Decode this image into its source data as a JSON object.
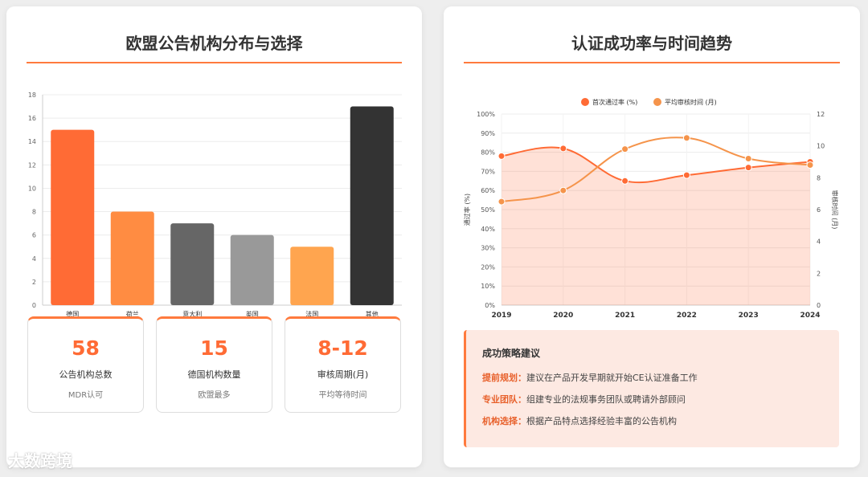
{
  "left_panel": {
    "title": "欧盟公告机构分布与选择"
  },
  "right_panel": {
    "title": "认证成功率与时间趋势"
  },
  "chart_data": [
    {
      "type": "bar",
      "categories": [
        "德国",
        "荷兰",
        "意大利",
        "英国",
        "法国",
        "其他"
      ],
      "values": [
        15,
        8,
        7,
        6,
        5,
        17
      ],
      "colors": [
        "#ff6b35",
        "#ff8c42",
        "#666666",
        "#999999",
        "#ffa54f",
        "#333333"
      ],
      "ylim": [
        0,
        18
      ],
      "yticks": [
        0,
        2,
        4,
        6,
        8,
        10,
        12,
        14,
        16,
        18
      ],
      "grid": true,
      "legend": false
    },
    {
      "type": "line",
      "x": [
        "2019",
        "2020",
        "2021",
        "2022",
        "2023",
        "2024"
      ],
      "series": [
        {
          "name": "首次通过率 (%)",
          "values": [
            78,
            82,
            65,
            68,
            72,
            75
          ],
          "color": "#ff6b35",
          "axis": "left",
          "fill": true
        },
        {
          "name": "平均审核时间 (月)",
          "values": [
            6.5,
            7.2,
            9.8,
            10.5,
            9.2,
            8.8
          ],
          "color": "#f5944b",
          "axis": "right",
          "fill": false
        }
      ],
      "y_left": {
        "label": "通过率 (%)",
        "ylim": [
          0,
          100
        ],
        "ticks": [
          "0%",
          "10%",
          "20%",
          "30%",
          "40%",
          "50%",
          "60%",
          "70%",
          "80%",
          "90%",
          "100%"
        ]
      },
      "y_right": {
        "label": "审核时间 (月)",
        "ylim": [
          0,
          12
        ],
        "ticks": [
          "0",
          "2",
          "4",
          "6",
          "8",
          "10",
          "12"
        ]
      },
      "legend": "top-center",
      "grid": true
    }
  ],
  "stats": [
    {
      "value": "58",
      "label": "公告机构总数",
      "sub": "MDR认可"
    },
    {
      "value": "15",
      "label": "德国机构数量",
      "sub": "欧盟最多"
    },
    {
      "value": "8-12",
      "label": "审核周期(月)",
      "sub": "平均等待时间"
    }
  ],
  "strategy": {
    "title": "成功策略建议",
    "items": [
      {
        "key": "提前规划：",
        "text": "建议在产品开发早期就开始CE认证准备工作"
      },
      {
        "key": "专业团队：",
        "text": "组建专业的法规事务团队或聘请外部顾问"
      },
      {
        "key": "机构选择：",
        "text": "根据产品特点选择经验丰富的公告机构"
      }
    ]
  },
  "watermark": "大数跨境"
}
